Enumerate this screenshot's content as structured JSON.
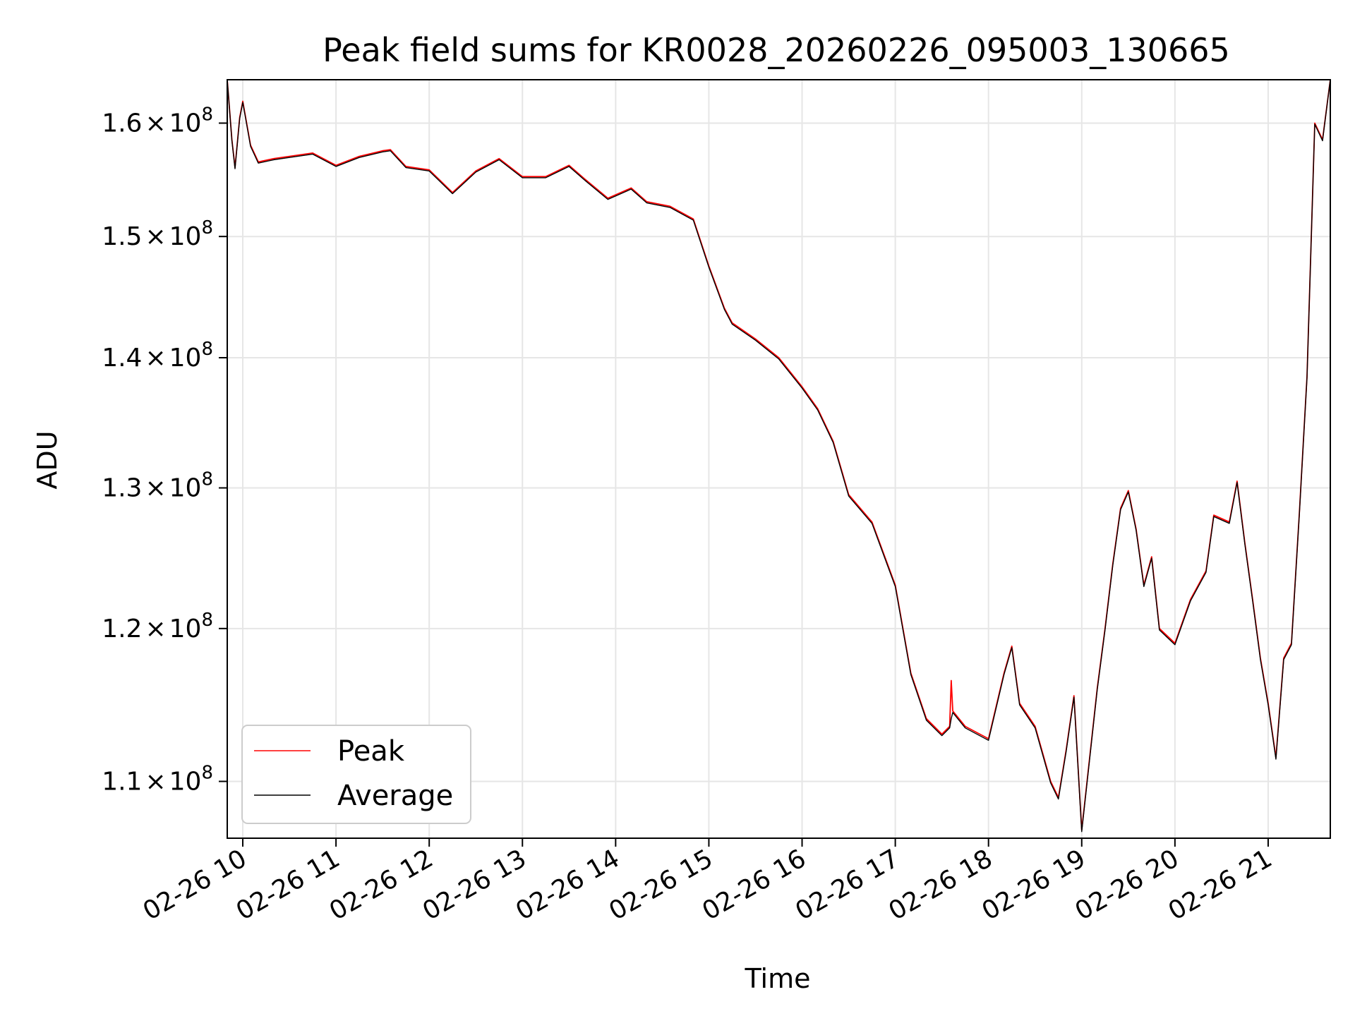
{
  "chart_data": {
    "type": "line",
    "title": "Peak field sums for KR0028_20260226_095003_130665",
    "xlabel": "Time",
    "ylabel": "ADU",
    "y_scale": "log",
    "xlim": [
      "2026-02-26 09:50",
      "2026-02-26 21:40"
    ],
    "ylim": [
      106500000,
      164000000
    ],
    "grid": true,
    "legend": "lower-left",
    "x_tick_labels": [
      "02-26 10",
      "02-26 11",
      "02-26 12",
      "02-26 13",
      "02-26 14",
      "02-26 15",
      "02-26 16",
      "02-26 17",
      "02-26 18",
      "02-26 19",
      "02-26 20",
      "02-26 21"
    ],
    "y_tick_labels": [
      {
        "value": 110000000,
        "mantissa": "1.1",
        "exponent": "8"
      },
      {
        "value": 120000000,
        "mantissa": "1.2",
        "exponent": "8"
      },
      {
        "value": 130000000,
        "mantissa": "1.3",
        "exponent": "8"
      },
      {
        "value": 140000000,
        "mantissa": "1.4",
        "exponent": "8"
      },
      {
        "value": 150000000,
        "mantissa": "1.5",
        "exponent": "8"
      },
      {
        "value": 160000000,
        "mantissa": "1.6",
        "exponent": "8"
      }
    ],
    "times_symbol": "×",
    "exponent_base": "10",
    "series": [
      {
        "name": "Peak",
        "color": "#ff0000",
        "x": [
          "2026-02-26 09:50",
          "2026-02-26 09:53",
          "2026-02-26 09:55",
          "2026-02-26 09:58",
          "2026-02-26 10:00",
          "2026-02-26 10:05",
          "2026-02-26 10:10",
          "2026-02-26 10:20",
          "2026-02-26 10:30",
          "2026-02-26 10:45",
          "2026-02-26 11:00",
          "2026-02-26 11:15",
          "2026-02-26 11:30",
          "2026-02-26 11:35",
          "2026-02-26 11:45",
          "2026-02-26 12:00",
          "2026-02-26 12:15",
          "2026-02-26 12:30",
          "2026-02-26 12:45",
          "2026-02-26 13:00",
          "2026-02-26 13:15",
          "2026-02-26 13:30",
          "2026-02-26 13:40",
          "2026-02-26 13:55",
          "2026-02-26 14:10",
          "2026-02-26 14:20",
          "2026-02-26 14:35",
          "2026-02-26 14:50",
          "2026-02-26 15:00",
          "2026-02-26 15:10",
          "2026-02-26 15:15",
          "2026-02-26 15:30",
          "2026-02-26 15:45",
          "2026-02-26 16:00",
          "2026-02-26 16:10",
          "2026-02-26 16:20",
          "2026-02-26 16:30",
          "2026-02-26 16:45",
          "2026-02-26 17:00",
          "2026-02-26 17:10",
          "2026-02-26 17:20",
          "2026-02-26 17:30",
          "2026-02-26 17:35",
          "2026-02-26 17:36",
          "2026-02-26 17:37",
          "2026-02-26 17:45",
          "2026-02-26 18:00",
          "2026-02-26 18:10",
          "2026-02-26 18:15",
          "2026-02-26 18:20",
          "2026-02-26 18:30",
          "2026-02-26 18:40",
          "2026-02-26 18:45",
          "2026-02-26 18:50",
          "2026-02-26 18:55",
          "2026-02-26 19:00",
          "2026-02-26 19:10",
          "2026-02-26 19:15",
          "2026-02-26 19:20",
          "2026-02-26 19:25",
          "2026-02-26 19:30",
          "2026-02-26 19:35",
          "2026-02-26 19:40",
          "2026-02-26 19:45",
          "2026-02-26 19:50",
          "2026-02-26 20:00",
          "2026-02-26 20:10",
          "2026-02-26 20:20",
          "2026-02-26 20:25",
          "2026-02-26 20:35",
          "2026-02-26 20:40",
          "2026-02-26 20:45",
          "2026-02-26 20:50",
          "2026-02-26 20:55",
          "2026-02-26 21:00",
          "2026-02-26 21:05",
          "2026-02-26 21:10",
          "2026-02-26 21:15",
          "2026-02-26 21:20",
          "2026-02-26 21:25",
          "2026-02-26 21:30",
          "2026-02-26 21:35",
          "2026-02-26 21:40"
        ],
        "y": [
          164000000,
          158500000,
          156000000,
          160500000,
          162000000,
          158000000,
          156500000,
          156800000,
          157000000,
          157300000,
          156200000,
          157000000,
          157500000,
          157600000,
          156100000,
          155800000,
          153800000,
          155700000,
          156800000,
          155200000,
          155200000,
          156200000,
          155000000,
          153300000,
          154200000,
          153000000,
          152600000,
          151500000,
          147500000,
          144000000,
          142800000,
          141500000,
          140000000,
          137700000,
          136000000,
          133500000,
          129500000,
          127500000,
          123000000,
          117000000,
          114000000,
          113000000,
          113500000,
          116500000,
          114500000,
          113500000,
          112700000,
          117000000,
          118800000,
          115000000,
          113500000,
          110000000,
          109000000,
          112000000,
          115500000,
          107000000,
          116000000,
          120000000,
          124500000,
          128500000,
          129800000,
          127000000,
          123000000,
          125000000,
          120000000,
          119000000,
          122000000,
          124000000,
          128000000,
          127500000,
          130500000,
          126000000,
          122000000,
          118000000,
          115000000,
          111500000,
          118000000,
          119000000,
          128000000,
          138500000,
          160000000,
          158500000,
          164000000
        ]
      },
      {
        "name": "Average",
        "color": "#000000",
        "x": [
          "2026-02-26 09:50",
          "2026-02-26 09:53",
          "2026-02-26 09:55",
          "2026-02-26 09:58",
          "2026-02-26 10:00",
          "2026-02-26 10:05",
          "2026-02-26 10:10",
          "2026-02-26 10:20",
          "2026-02-26 10:30",
          "2026-02-26 10:45",
          "2026-02-26 11:00",
          "2026-02-26 11:15",
          "2026-02-26 11:30",
          "2026-02-26 11:35",
          "2026-02-26 11:45",
          "2026-02-26 12:00",
          "2026-02-26 12:15",
          "2026-02-26 12:30",
          "2026-02-26 12:45",
          "2026-02-26 13:00",
          "2026-02-26 13:15",
          "2026-02-26 13:30",
          "2026-02-26 13:40",
          "2026-02-26 13:55",
          "2026-02-26 14:10",
          "2026-02-26 14:20",
          "2026-02-26 14:35",
          "2026-02-26 14:50",
          "2026-02-26 15:00",
          "2026-02-26 15:10",
          "2026-02-26 15:15",
          "2026-02-26 15:30",
          "2026-02-26 15:45",
          "2026-02-26 16:00",
          "2026-02-26 16:10",
          "2026-02-26 16:20",
          "2026-02-26 16:30",
          "2026-02-26 16:45",
          "2026-02-26 17:00",
          "2026-02-26 17:10",
          "2026-02-26 17:20",
          "2026-02-26 17:30",
          "2026-02-26 17:35",
          "2026-02-26 17:36",
          "2026-02-26 17:37",
          "2026-02-26 17:45",
          "2026-02-26 18:00",
          "2026-02-26 18:10",
          "2026-02-26 18:15",
          "2026-02-26 18:20",
          "2026-02-26 18:30",
          "2026-02-26 18:40",
          "2026-02-26 18:45",
          "2026-02-26 18:50",
          "2026-02-26 18:55",
          "2026-02-26 19:00",
          "2026-02-26 19:10",
          "2026-02-26 19:15",
          "2026-02-26 19:20",
          "2026-02-26 19:25",
          "2026-02-26 19:30",
          "2026-02-26 19:35",
          "2026-02-26 19:40",
          "2026-02-26 19:45",
          "2026-02-26 19:50",
          "2026-02-26 20:00",
          "2026-02-26 20:10",
          "2026-02-26 20:20",
          "2026-02-26 20:25",
          "2026-02-26 20:35",
          "2026-02-26 20:40",
          "2026-02-26 20:45",
          "2026-02-26 20:50",
          "2026-02-26 20:55",
          "2026-02-26 21:00",
          "2026-02-26 21:05",
          "2026-02-26 21:10",
          "2026-02-26 21:15",
          "2026-02-26 21:20",
          "2026-02-26 21:25",
          "2026-02-26 21:30",
          "2026-02-26 21:35",
          "2026-02-26 21:40"
        ],
        "y": [
          164000000,
          158400000,
          155900000,
          160400000,
          161900000,
          157900000,
          156400000,
          156700000,
          156900000,
          157200000,
          156100000,
          156900000,
          157400000,
          157500000,
          156000000,
          155700000,
          153700000,
          155600000,
          156700000,
          155100000,
          155100000,
          156100000,
          154900000,
          153200000,
          154100000,
          152900000,
          152500000,
          151400000,
          147400000,
          143900000,
          142700000,
          141400000,
          139900000,
          137600000,
          135900000,
          133400000,
          129400000,
          127400000,
          122900000,
          116900000,
          113900000,
          112900000,
          113400000,
          114000000,
          114400000,
          113400000,
          112600000,
          116900000,
          118700000,
          114900000,
          113400000,
          109900000,
          108900000,
          111900000,
          115400000,
          106900000,
          115900000,
          119900000,
          124400000,
          128400000,
          129700000,
          126900000,
          122900000,
          124900000,
          119900000,
          118900000,
          121900000,
          123900000,
          127900000,
          127400000,
          130400000,
          125900000,
          121900000,
          117900000,
          114900000,
          111400000,
          117900000,
          118900000,
          127900000,
          138400000,
          159900000,
          158400000,
          164000000
        ]
      }
    ]
  }
}
